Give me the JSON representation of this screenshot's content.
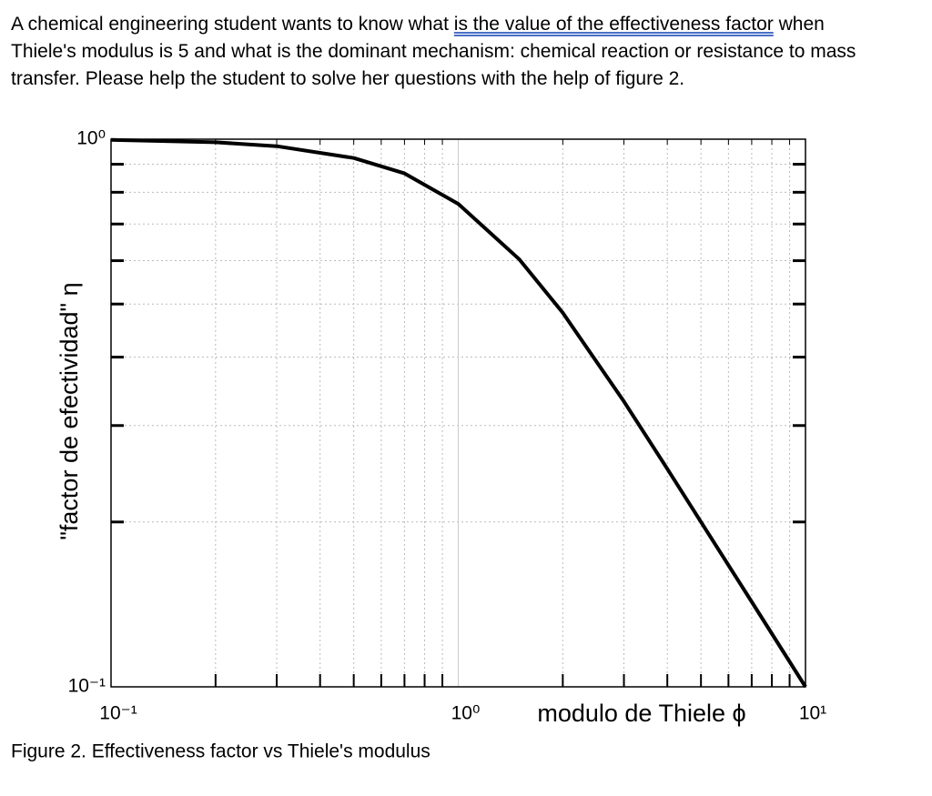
{
  "question": {
    "parts": [
      "A chemical engineering student wants to know what ",
      "is the value of the effectiveness factor",
      " when Thiele's modulus is 5 and what is the dominant mechanism: chemical reaction or resistance to mass transfer. Please help the student to solve her questions with the help of figure 2."
    ]
  },
  "chart_data": {
    "type": "line",
    "x": [
      0.1,
      0.2,
      0.3,
      0.5,
      0.7,
      1,
      1.5,
      2,
      3,
      4,
      5,
      7,
      10
    ],
    "series": [
      {
        "values": [
          0.997,
          0.987,
          0.971,
          0.924,
          0.866,
          0.762,
          0.603,
          0.482,
          0.332,
          0.25,
          0.2,
          0.143,
          0.1
        ],
        "color": "#000000"
      }
    ],
    "xlim": [
      0.1,
      10
    ],
    "ylim": [
      0.1,
      1
    ],
    "xticks": [
      {
        "value": 0.1,
        "label": "10⁻¹"
      },
      {
        "value": 1,
        "label": "10⁰"
      },
      {
        "value": 10,
        "label": "10¹"
      }
    ],
    "yticks": [
      {
        "value": 0.1,
        "label": "10⁻¹"
      },
      {
        "value": 1,
        "label": "10⁰"
      }
    ],
    "x_label": "modulo de Thiele ϕ",
    "y_label": "\"factor de efectividad\" η",
    "log_scale": true,
    "grid": true
  },
  "caption": "Figure 2. Effectiveness factor vs Thiele's modulus"
}
